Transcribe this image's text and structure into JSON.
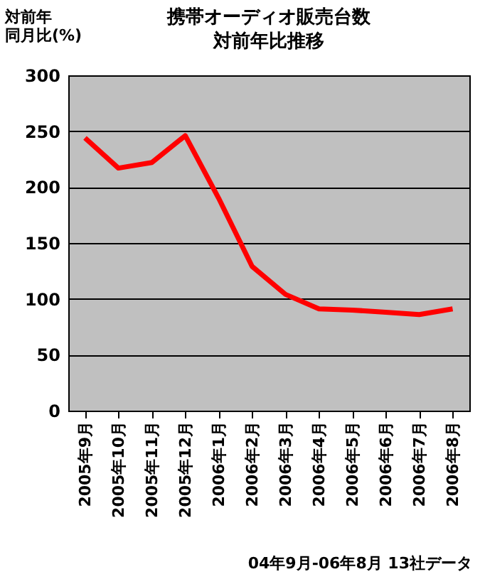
{
  "chart_data": {
    "type": "line",
    "title": [
      "携帯オーディオ販売台数",
      "対前年比推移"
    ],
    "ylabel": [
      "対前年",
      "同月比(%)"
    ],
    "categories": [
      "2005年9月",
      "2005年10月",
      "2005年11月",
      "2005年12月",
      "2006年1月",
      "2006年2月",
      "2006年3月",
      "2006年4月",
      "2006年5月",
      "2006年6月",
      "2006年7月",
      "2006年8月"
    ],
    "series": [
      {
        "color": "#ff0000",
        "values": [
          244,
          217,
          222,
          246,
          190,
          129,
          104,
          91,
          90,
          88,
          86,
          91
        ]
      }
    ],
    "ylim": [
      0,
      300
    ],
    "yticks": [
      0,
      50,
      100,
      150,
      200,
      250,
      300
    ],
    "grid": "y",
    "marker": "none",
    "line_style": "solid",
    "annotations": [
      "04年9月-06年8月 13社データ"
    ]
  }
}
